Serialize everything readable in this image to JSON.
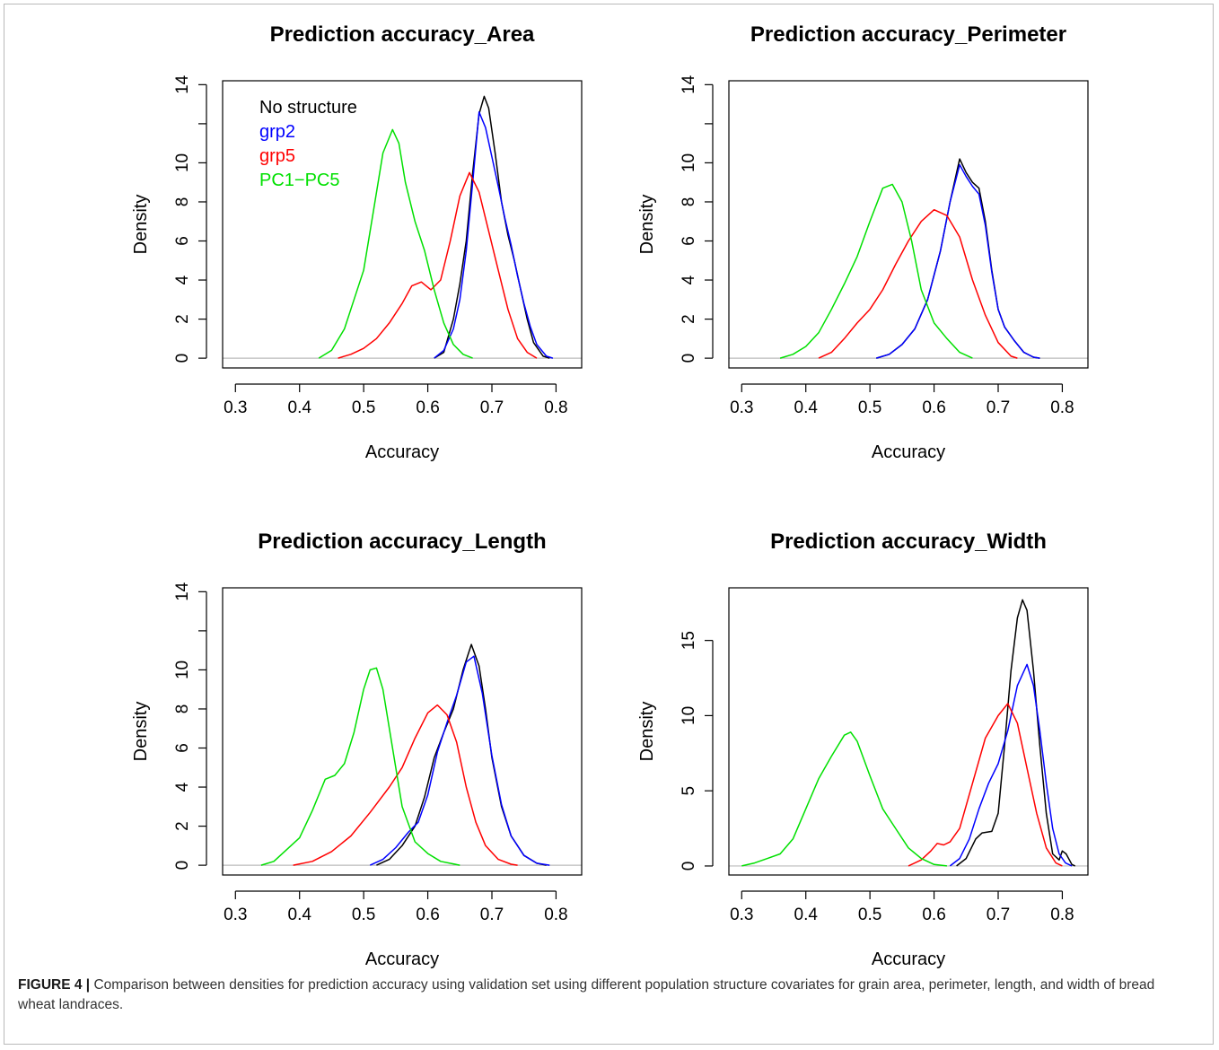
{
  "figure": {
    "caption_label": "FIGURE 4 |",
    "caption_text": "Comparison between densities for prediction accuracy using validation set using different population structure covariates for grain area, perimeter, length, and width of bread wheat landraces."
  },
  "colors": {
    "no_structure": "#000000",
    "grp2": "#0000ff",
    "grp5": "#ff0000",
    "pc": "#00e000",
    "zero_line": "#bbbbbb"
  },
  "chart_data": [
    {
      "type": "line",
      "title": "Prediction accuracy_Area",
      "xlabel": "Accuracy",
      "ylabel": "Density",
      "xlim": [
        0.28,
        0.84
      ],
      "ylim": [
        -0.5,
        14.2
      ],
      "xticks": [
        0.3,
        0.4,
        0.5,
        0.6,
        0.7,
        0.8
      ],
      "yticks": [
        0,
        2,
        4,
        6,
        8,
        10,
        12,
        14
      ],
      "yticklabels": [
        "0",
        "2",
        "4",
        "6",
        "8",
        "10",
        "",
        "14"
      ],
      "legend": {
        "position": "top-left",
        "entries": [
          "No structure",
          "grp2",
          "grp5",
          "PC1−PC5"
        ]
      },
      "series": [
        {
          "name": "No structure",
          "x": [
            0.61,
            0.625,
            0.64,
            0.65,
            0.66,
            0.67,
            0.68,
            0.688,
            0.695,
            0.705,
            0.715,
            0.725,
            0.735,
            0.745,
            0.755,
            0.765,
            0.78,
            0.79
          ],
          "y": [
            0,
            0.3,
            2.0,
            3.8,
            6.0,
            9.5,
            12.5,
            13.4,
            12.8,
            10.5,
            8.0,
            6.3,
            5.0,
            3.5,
            2.0,
            0.8,
            0.1,
            0
          ]
        },
        {
          "name": "grp2",
          "x": [
            0.61,
            0.625,
            0.64,
            0.65,
            0.66,
            0.67,
            0.68,
            0.69,
            0.7,
            0.71,
            0.72,
            0.73,
            0.74,
            0.75,
            0.76,
            0.77,
            0.785,
            0.795
          ],
          "y": [
            0,
            0.4,
            1.5,
            3.0,
            5.5,
            9.0,
            12.6,
            11.8,
            10.3,
            8.8,
            7.2,
            5.8,
            4.2,
            2.8,
            1.6,
            0.7,
            0.1,
            0
          ]
        },
        {
          "name": "grp5",
          "x": [
            0.46,
            0.48,
            0.5,
            0.52,
            0.54,
            0.56,
            0.575,
            0.59,
            0.605,
            0.62,
            0.635,
            0.65,
            0.665,
            0.68,
            0.695,
            0.71,
            0.725,
            0.74,
            0.755,
            0.77
          ],
          "y": [
            0,
            0.2,
            0.5,
            1.0,
            1.8,
            2.8,
            3.7,
            3.9,
            3.5,
            4.0,
            6.0,
            8.3,
            9.5,
            8.5,
            6.5,
            4.5,
            2.5,
            1.0,
            0.3,
            0
          ]
        },
        {
          "name": "PC1−PC5",
          "x": [
            0.43,
            0.45,
            0.47,
            0.485,
            0.5,
            0.515,
            0.53,
            0.545,
            0.555,
            0.565,
            0.58,
            0.595,
            0.61,
            0.625,
            0.64,
            0.655,
            0.67
          ],
          "y": [
            0,
            0.4,
            1.5,
            3.0,
            4.5,
            7.5,
            10.5,
            11.7,
            11.0,
            9.0,
            7.0,
            5.5,
            3.5,
            1.8,
            0.7,
            0.2,
            0
          ]
        }
      ]
    },
    {
      "type": "line",
      "title": "Prediction accuracy_Perimeter",
      "xlabel": "Accuracy",
      "ylabel": "Density",
      "xlim": [
        0.28,
        0.84
      ],
      "ylim": [
        -0.5,
        14.2
      ],
      "xticks": [
        0.3,
        0.4,
        0.5,
        0.6,
        0.7,
        0.8
      ],
      "yticks": [
        0,
        2,
        4,
        6,
        8,
        10,
        12,
        14
      ],
      "yticklabels": [
        "0",
        "2",
        "4",
        "6",
        "8",
        "10",
        "",
        "14"
      ],
      "series": [
        {
          "name": "No structure",
          "x": [
            0.51,
            0.53,
            0.55,
            0.57,
            0.59,
            0.61,
            0.625,
            0.64,
            0.65,
            0.66,
            0.67,
            0.68,
            0.69,
            0.7,
            0.71,
            0.725,
            0.74,
            0.755,
            0.765
          ],
          "y": [
            0,
            0.2,
            0.7,
            1.5,
            3.0,
            5.5,
            8.0,
            10.2,
            9.5,
            9.0,
            8.7,
            7.0,
            4.5,
            2.5,
            1.6,
            0.9,
            0.3,
            0.05,
            0
          ]
        },
        {
          "name": "grp2",
          "x": [
            0.51,
            0.53,
            0.55,
            0.57,
            0.59,
            0.61,
            0.625,
            0.64,
            0.65,
            0.66,
            0.67,
            0.68,
            0.69,
            0.7,
            0.71,
            0.725,
            0.74,
            0.755,
            0.765
          ],
          "y": [
            0,
            0.2,
            0.7,
            1.5,
            3.0,
            5.5,
            8.0,
            9.9,
            9.3,
            8.8,
            8.4,
            6.8,
            4.4,
            2.5,
            1.6,
            0.9,
            0.3,
            0.05,
            0
          ]
        },
        {
          "name": "grp5",
          "x": [
            0.42,
            0.44,
            0.46,
            0.48,
            0.5,
            0.52,
            0.54,
            0.56,
            0.58,
            0.6,
            0.62,
            0.64,
            0.66,
            0.68,
            0.7,
            0.72,
            0.73
          ],
          "y": [
            0,
            0.3,
            1.0,
            1.8,
            2.5,
            3.5,
            4.8,
            6.0,
            7.0,
            7.6,
            7.3,
            6.2,
            4.0,
            2.2,
            0.8,
            0.1,
            0
          ]
        },
        {
          "name": "PC1−PC5",
          "x": [
            0.36,
            0.38,
            0.4,
            0.42,
            0.44,
            0.46,
            0.48,
            0.5,
            0.52,
            0.535,
            0.55,
            0.565,
            0.58,
            0.6,
            0.62,
            0.64,
            0.66
          ],
          "y": [
            0,
            0.2,
            0.6,
            1.3,
            2.5,
            3.8,
            5.2,
            7.0,
            8.7,
            8.9,
            8.0,
            6.0,
            3.5,
            1.8,
            1.0,
            0.3,
            0
          ]
        }
      ]
    },
    {
      "type": "line",
      "title": "Prediction accuracy_Length",
      "xlabel": "Accuracy",
      "ylabel": "Density",
      "xlim": [
        0.28,
        0.84
      ],
      "ylim": [
        -0.5,
        14.2
      ],
      "xticks": [
        0.3,
        0.4,
        0.5,
        0.6,
        0.7,
        0.8
      ],
      "yticks": [
        0,
        2,
        4,
        6,
        8,
        10,
        12,
        14
      ],
      "yticklabels": [
        "0",
        "2",
        "4",
        "6",
        "8",
        "10",
        "",
        "14"
      ],
      "series": [
        {
          "name": "No structure",
          "x": [
            0.52,
            0.54,
            0.56,
            0.58,
            0.595,
            0.61,
            0.625,
            0.64,
            0.655,
            0.668,
            0.68,
            0.69,
            0.7,
            0.715,
            0.73,
            0.75,
            0.77,
            0.785
          ],
          "y": [
            0,
            0.3,
            1.0,
            2.0,
            3.5,
            5.5,
            6.8,
            8.0,
            10.0,
            11.3,
            10.2,
            8.0,
            5.5,
            3.0,
            1.5,
            0.5,
            0.1,
            0
          ]
        },
        {
          "name": "grp2",
          "x": [
            0.51,
            0.53,
            0.55,
            0.57,
            0.585,
            0.6,
            0.615,
            0.63,
            0.645,
            0.66,
            0.672,
            0.685,
            0.7,
            0.715,
            0.73,
            0.75,
            0.77,
            0.79
          ],
          "y": [
            0,
            0.3,
            0.9,
            1.7,
            2.2,
            3.6,
            5.8,
            7.3,
            8.7,
            10.4,
            10.7,
            8.8,
            5.6,
            3.1,
            1.5,
            0.5,
            0.1,
            0
          ]
        },
        {
          "name": "grp5",
          "x": [
            0.39,
            0.42,
            0.45,
            0.48,
            0.51,
            0.54,
            0.56,
            0.58,
            0.6,
            0.615,
            0.63,
            0.645,
            0.66,
            0.675,
            0.69,
            0.71,
            0.73,
            0.74
          ],
          "y": [
            0,
            0.2,
            0.7,
            1.5,
            2.7,
            4.0,
            5.0,
            6.5,
            7.8,
            8.2,
            7.7,
            6.3,
            4.0,
            2.2,
            1.0,
            0.3,
            0.05,
            0
          ]
        },
        {
          "name": "PC1−PC5",
          "x": [
            0.34,
            0.36,
            0.38,
            0.4,
            0.42,
            0.44,
            0.455,
            0.47,
            0.485,
            0.5,
            0.51,
            0.52,
            0.53,
            0.545,
            0.56,
            0.58,
            0.6,
            0.62,
            0.65
          ],
          "y": [
            0,
            0.2,
            0.8,
            1.4,
            2.8,
            4.4,
            4.6,
            5.2,
            6.8,
            9.0,
            10.0,
            10.1,
            9.0,
            6.0,
            3.0,
            1.2,
            0.6,
            0.2,
            0
          ]
        }
      ]
    },
    {
      "type": "line",
      "title": "Prediction accuracy_Width",
      "xlabel": "Accuracy",
      "ylabel": "Density",
      "xlim": [
        0.28,
        0.84
      ],
      "ylim": [
        -0.6,
        18.5
      ],
      "xticks": [
        0.3,
        0.4,
        0.5,
        0.6,
        0.7,
        0.8
      ],
      "yticks": [
        0,
        5,
        10,
        15
      ],
      "yticklabels": [
        "0",
        "5",
        "10",
        "15"
      ],
      "series": [
        {
          "name": "No structure",
          "x": [
            0.635,
            0.65,
            0.665,
            0.675,
            0.69,
            0.7,
            0.71,
            0.72,
            0.73,
            0.738,
            0.745,
            0.755,
            0.765,
            0.775,
            0.785,
            0.795,
            0.8,
            0.806,
            0.815,
            0.82
          ],
          "y": [
            0,
            0.5,
            1.8,
            2.2,
            2.3,
            3.5,
            8.0,
            13.0,
            16.5,
            17.7,
            17.0,
            13.0,
            8.0,
            3.5,
            0.8,
            0.4,
            1.0,
            0.8,
            0.1,
            0
          ]
        },
        {
          "name": "grp2",
          "x": [
            0.625,
            0.64,
            0.655,
            0.67,
            0.685,
            0.7,
            0.715,
            0.73,
            0.745,
            0.755,
            0.765,
            0.775,
            0.785,
            0.795,
            0.805,
            0.815
          ],
          "y": [
            0,
            0.5,
            1.8,
            3.8,
            5.5,
            6.8,
            9.0,
            12.0,
            13.4,
            12.0,
            9.0,
            5.5,
            2.5,
            0.8,
            0.2,
            0
          ]
        },
        {
          "name": "grp5",
          "x": [
            0.56,
            0.58,
            0.595,
            0.605,
            0.615,
            0.625,
            0.64,
            0.66,
            0.68,
            0.7,
            0.715,
            0.73,
            0.745,
            0.76,
            0.775,
            0.79,
            0.8
          ],
          "y": [
            0,
            0.4,
            1.0,
            1.5,
            1.4,
            1.6,
            2.5,
            5.5,
            8.5,
            10.0,
            10.8,
            9.5,
            6.5,
            3.5,
            1.2,
            0.2,
            0
          ]
        },
        {
          "name": "PC1−PC5",
          "x": [
            0.3,
            0.32,
            0.34,
            0.36,
            0.38,
            0.4,
            0.42,
            0.44,
            0.46,
            0.47,
            0.48,
            0.5,
            0.52,
            0.54,
            0.56,
            0.58,
            0.6,
            0.62
          ],
          "y": [
            0,
            0.2,
            0.5,
            0.8,
            1.8,
            3.8,
            5.8,
            7.3,
            8.7,
            8.9,
            8.3,
            6.0,
            3.8,
            2.5,
            1.2,
            0.5,
            0.1,
            0
          ]
        }
      ]
    }
  ]
}
